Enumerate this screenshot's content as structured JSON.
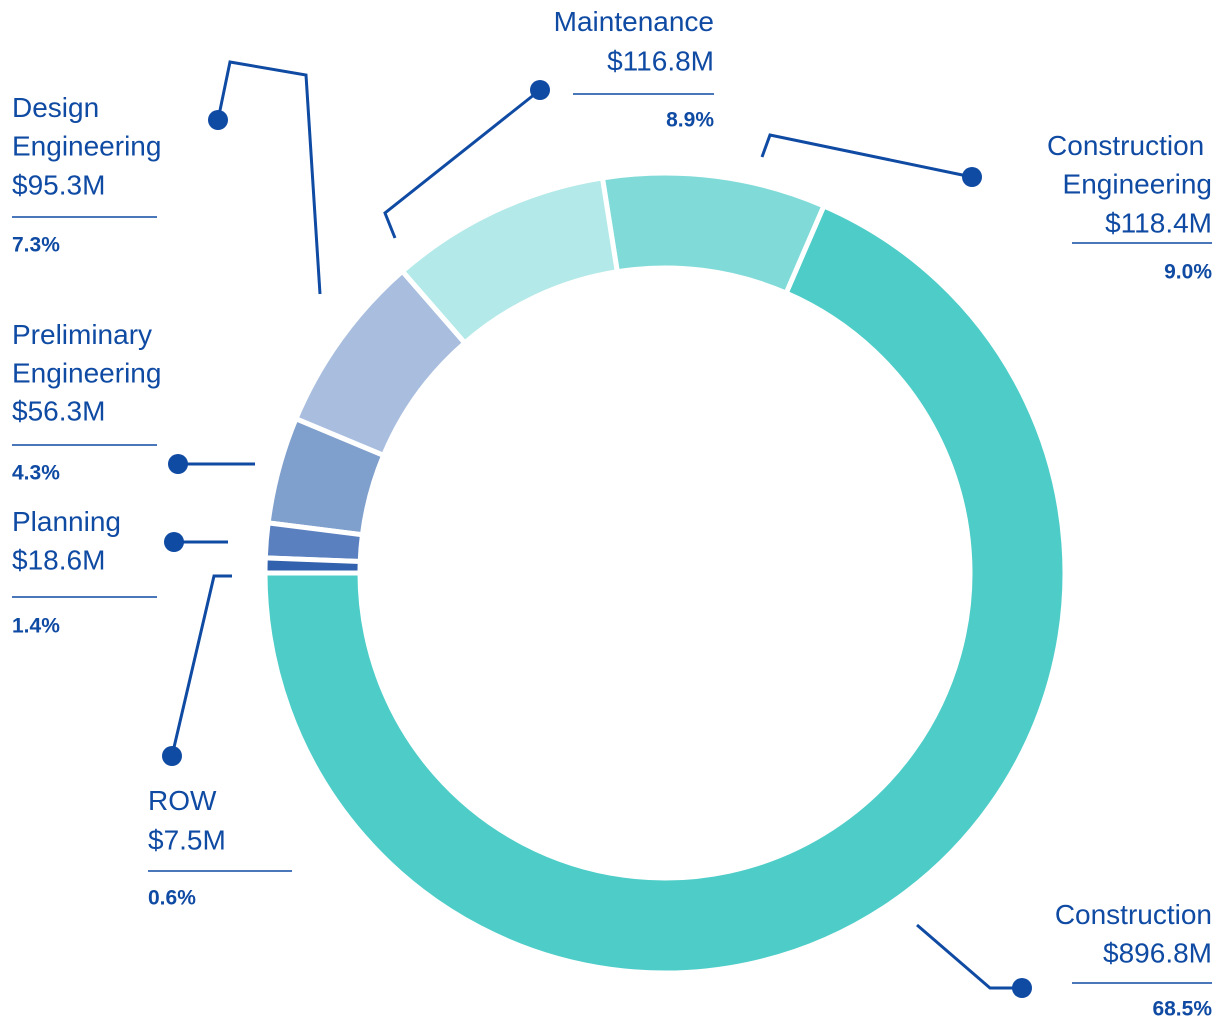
{
  "chart_data": {
    "type": "donut",
    "categories": [
      "Construction",
      "Construction Engineering",
      "Maintenance",
      "Design Engineering",
      "Preliminary Engineering",
      "Planning",
      "ROW"
    ],
    "values": [
      68.5,
      9.0,
      8.9,
      7.3,
      4.3,
      1.4,
      0.6
    ],
    "value_labels": [
      "68.5%",
      "9.0%",
      "8.9%",
      "7.3%",
      "4.3%",
      "1.4%",
      "0.6%"
    ],
    "amount_labels": [
      "$896.8M",
      "$118.4M",
      "$116.8M",
      "$95.3M",
      "$56.3M",
      "$18.6M",
      "$7.5M"
    ],
    "colors": [
      "#4ecdc8",
      "#80dbd8",
      "#b3e9e8",
      "#a9bedf",
      "#7f9fcc",
      "#5a80c0",
      "#3262ad"
    ]
  }
}
